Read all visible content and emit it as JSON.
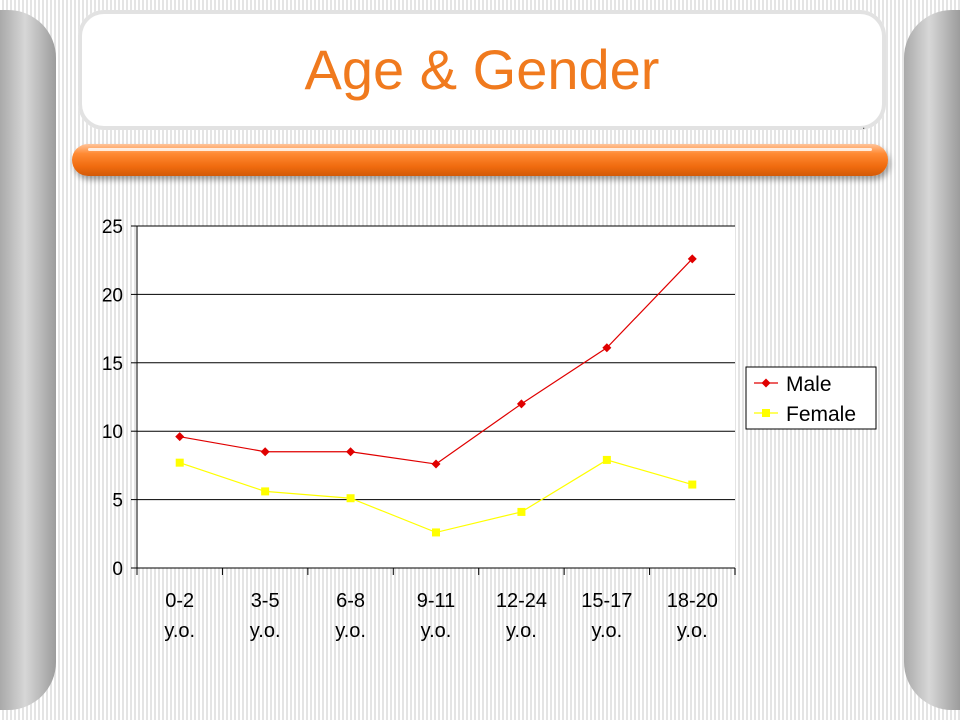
{
  "slide": {
    "title": "Age & Gender",
    "dot": ".",
    "colors": {
      "title": "#f07a1e",
      "accent_bar": "#f06b0f"
    }
  },
  "chart_data": {
    "type": "line",
    "title": "",
    "xlabel": "",
    "ylabel": "",
    "categories": [
      [
        "0-2",
        "y.o."
      ],
      [
        "3-5",
        "y.o."
      ],
      [
        "6-8",
        "y.o."
      ],
      [
        "9-11",
        "y.o."
      ],
      [
        "12-24",
        "y.o."
      ],
      [
        "15-17",
        "y.o."
      ],
      [
        "18-20",
        "y.o."
      ]
    ],
    "y_ticks": [
      0,
      5,
      10,
      15,
      20,
      25
    ],
    "ylim": [
      0,
      25
    ],
    "grid": "horizontal",
    "legend": "right",
    "series": [
      {
        "name": "Male",
        "color": "#e00000",
        "marker": "diamond",
        "values": [
          9.6,
          8.5,
          8.5,
          7.6,
          12.0,
          16.1,
          22.6
        ]
      },
      {
        "name": "Female",
        "color": "#ffff00",
        "marker": "square",
        "values": [
          7.7,
          5.6,
          5.1,
          2.6,
          4.1,
          7.9,
          6.1
        ]
      }
    ]
  }
}
